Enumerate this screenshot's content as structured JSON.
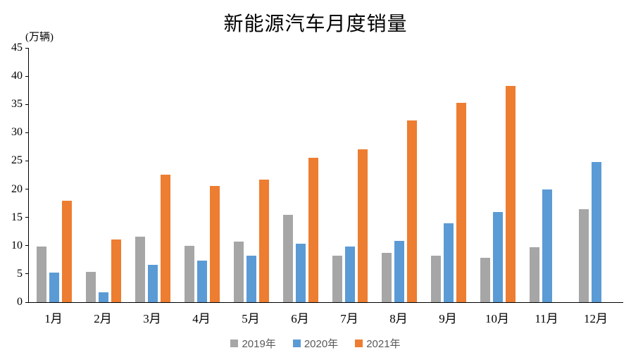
{
  "title": "新能源汽车月度销量",
  "unit_label": "(万辆)",
  "chart_data": {
    "type": "bar",
    "title": "新能源汽车月度销量",
    "ylabel": "(万辆)",
    "xlabel": "",
    "categories": [
      "1月",
      "2月",
      "3月",
      "4月",
      "5月",
      "6月",
      "7月",
      "8月",
      "9月",
      "10月",
      "11月",
      "12月"
    ],
    "series": [
      {
        "name": "2019年",
        "color": "#A6A6A6",
        "values": [
          9.8,
          5.4,
          11.6,
          10.0,
          10.7,
          15.5,
          8.2,
          8.7,
          8.2,
          7.8,
          9.7,
          16.5
        ]
      },
      {
        "name": "2020年",
        "color": "#5B9BD5",
        "values": [
          5.2,
          1.7,
          6.6,
          7.3,
          8.2,
          10.4,
          9.8,
          10.9,
          13.9,
          16.0,
          20.0,
          24.8
        ]
      },
      {
        "name": "2021年",
        "color": "#ED7D31",
        "values": [
          17.9,
          11.1,
          22.6,
          20.6,
          21.7,
          25.6,
          27.1,
          32.1,
          35.3,
          38.3,
          null,
          null
        ]
      }
    ],
    "ylim": [
      0,
      45
    ],
    "yticks": [
      0,
      5,
      10,
      15,
      20,
      25,
      30,
      35,
      40,
      45
    ],
    "grid": false,
    "legend_position": "bottom"
  },
  "colors": {
    "series_2019": "#A6A6A6",
    "series_2020": "#5B9BD5",
    "series_2021": "#ED7D31",
    "axis": "#000000",
    "legend_text": "#595959"
  }
}
